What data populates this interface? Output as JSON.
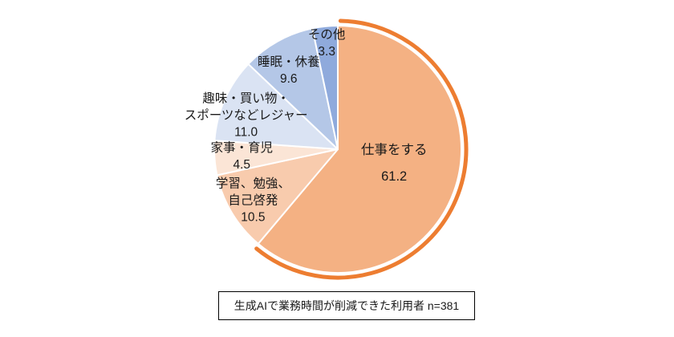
{
  "chart_data": {
    "type": "pie",
    "title": "",
    "note": "生成AIで業務時間が削減できた利用者 n=381",
    "direction": "clockwise",
    "start_angle_deg": 0,
    "emphasis": {
      "slice": "仕事をする",
      "arc_color": "#ED7D31"
    },
    "slices": [
      {
        "label": "仕事をする",
        "label_lines": [
          "仕事をする"
        ],
        "value": 61.2,
        "color": "#F4B183"
      },
      {
        "label": "学習、勉強、自己啓発",
        "label_lines": [
          "学習、勉強、",
          "自己啓発"
        ],
        "value": 10.5,
        "color": "#F8CBAD"
      },
      {
        "label": "家事・育児",
        "label_lines": [
          "家事・育児"
        ],
        "value": 4.5,
        "color": "#FBE5D6"
      },
      {
        "label": "趣味・買い物・スポーツなどレジャー",
        "label_lines": [
          "趣味・買い物・",
          "スポーツなどレジャー"
        ],
        "value": 11.0,
        "color": "#DAE3F3"
      },
      {
        "label": "睡眠・休養",
        "label_lines": [
          "睡眠・休養"
        ],
        "value": 9.6,
        "color": "#B4C7E7"
      },
      {
        "label": "その他",
        "label_lines": [
          "その他"
        ],
        "value": 3.3,
        "color": "#8FAADC"
      }
    ]
  }
}
